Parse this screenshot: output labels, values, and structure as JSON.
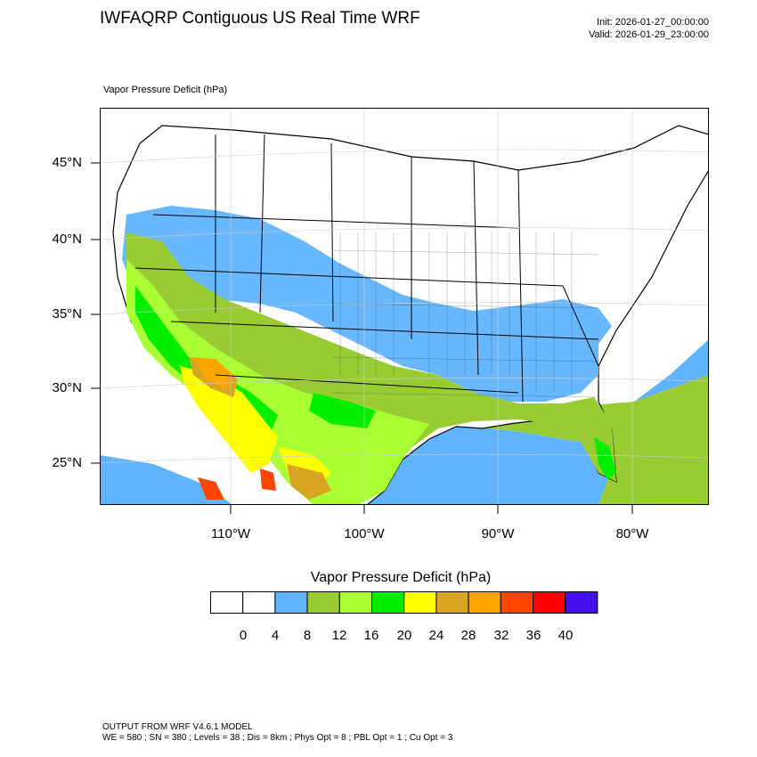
{
  "header": {
    "title": "IWFAQRP Contiguous US Real Time WRF",
    "init": "Init: 2026-01-27_00:00:00",
    "valid": "Valid: 2026-01-29_23:00:00"
  },
  "map": {
    "variable_label": "Vapor Pressure Deficit   (hPa)",
    "lat_labels": [
      "45°N",
      "40°N",
      "35°N",
      "30°N",
      "25°N"
    ],
    "lon_labels": [
      "110°W",
      "100°W",
      "90°W",
      "80°W"
    ]
  },
  "colorbar": {
    "title": "Vapor Pressure Deficit  (hPa)",
    "tick_labels": [
      "0",
      "4",
      "8",
      "12",
      "16",
      "20",
      "24",
      "28",
      "32",
      "36",
      "40"
    ],
    "colors": [
      "#ffffff",
      "#ffffff",
      "#60b4ff",
      "#99cc33",
      "#aaff33",
      "#00ee00",
      "#ffff00",
      "#daa520",
      "#ffa500",
      "#ff4500",
      "#ff0000",
      "#4411ee"
    ]
  },
  "footer": {
    "line1": "OUTPUT FROM WRF V4.6.1 MODEL",
    "line2": "WE = 580 ; SN = 380 ; Levels = 38 ; Dis = 8km ; Phys Opt = 8 ; PBL Opt = 1 ; Cu Opt = 3"
  }
}
